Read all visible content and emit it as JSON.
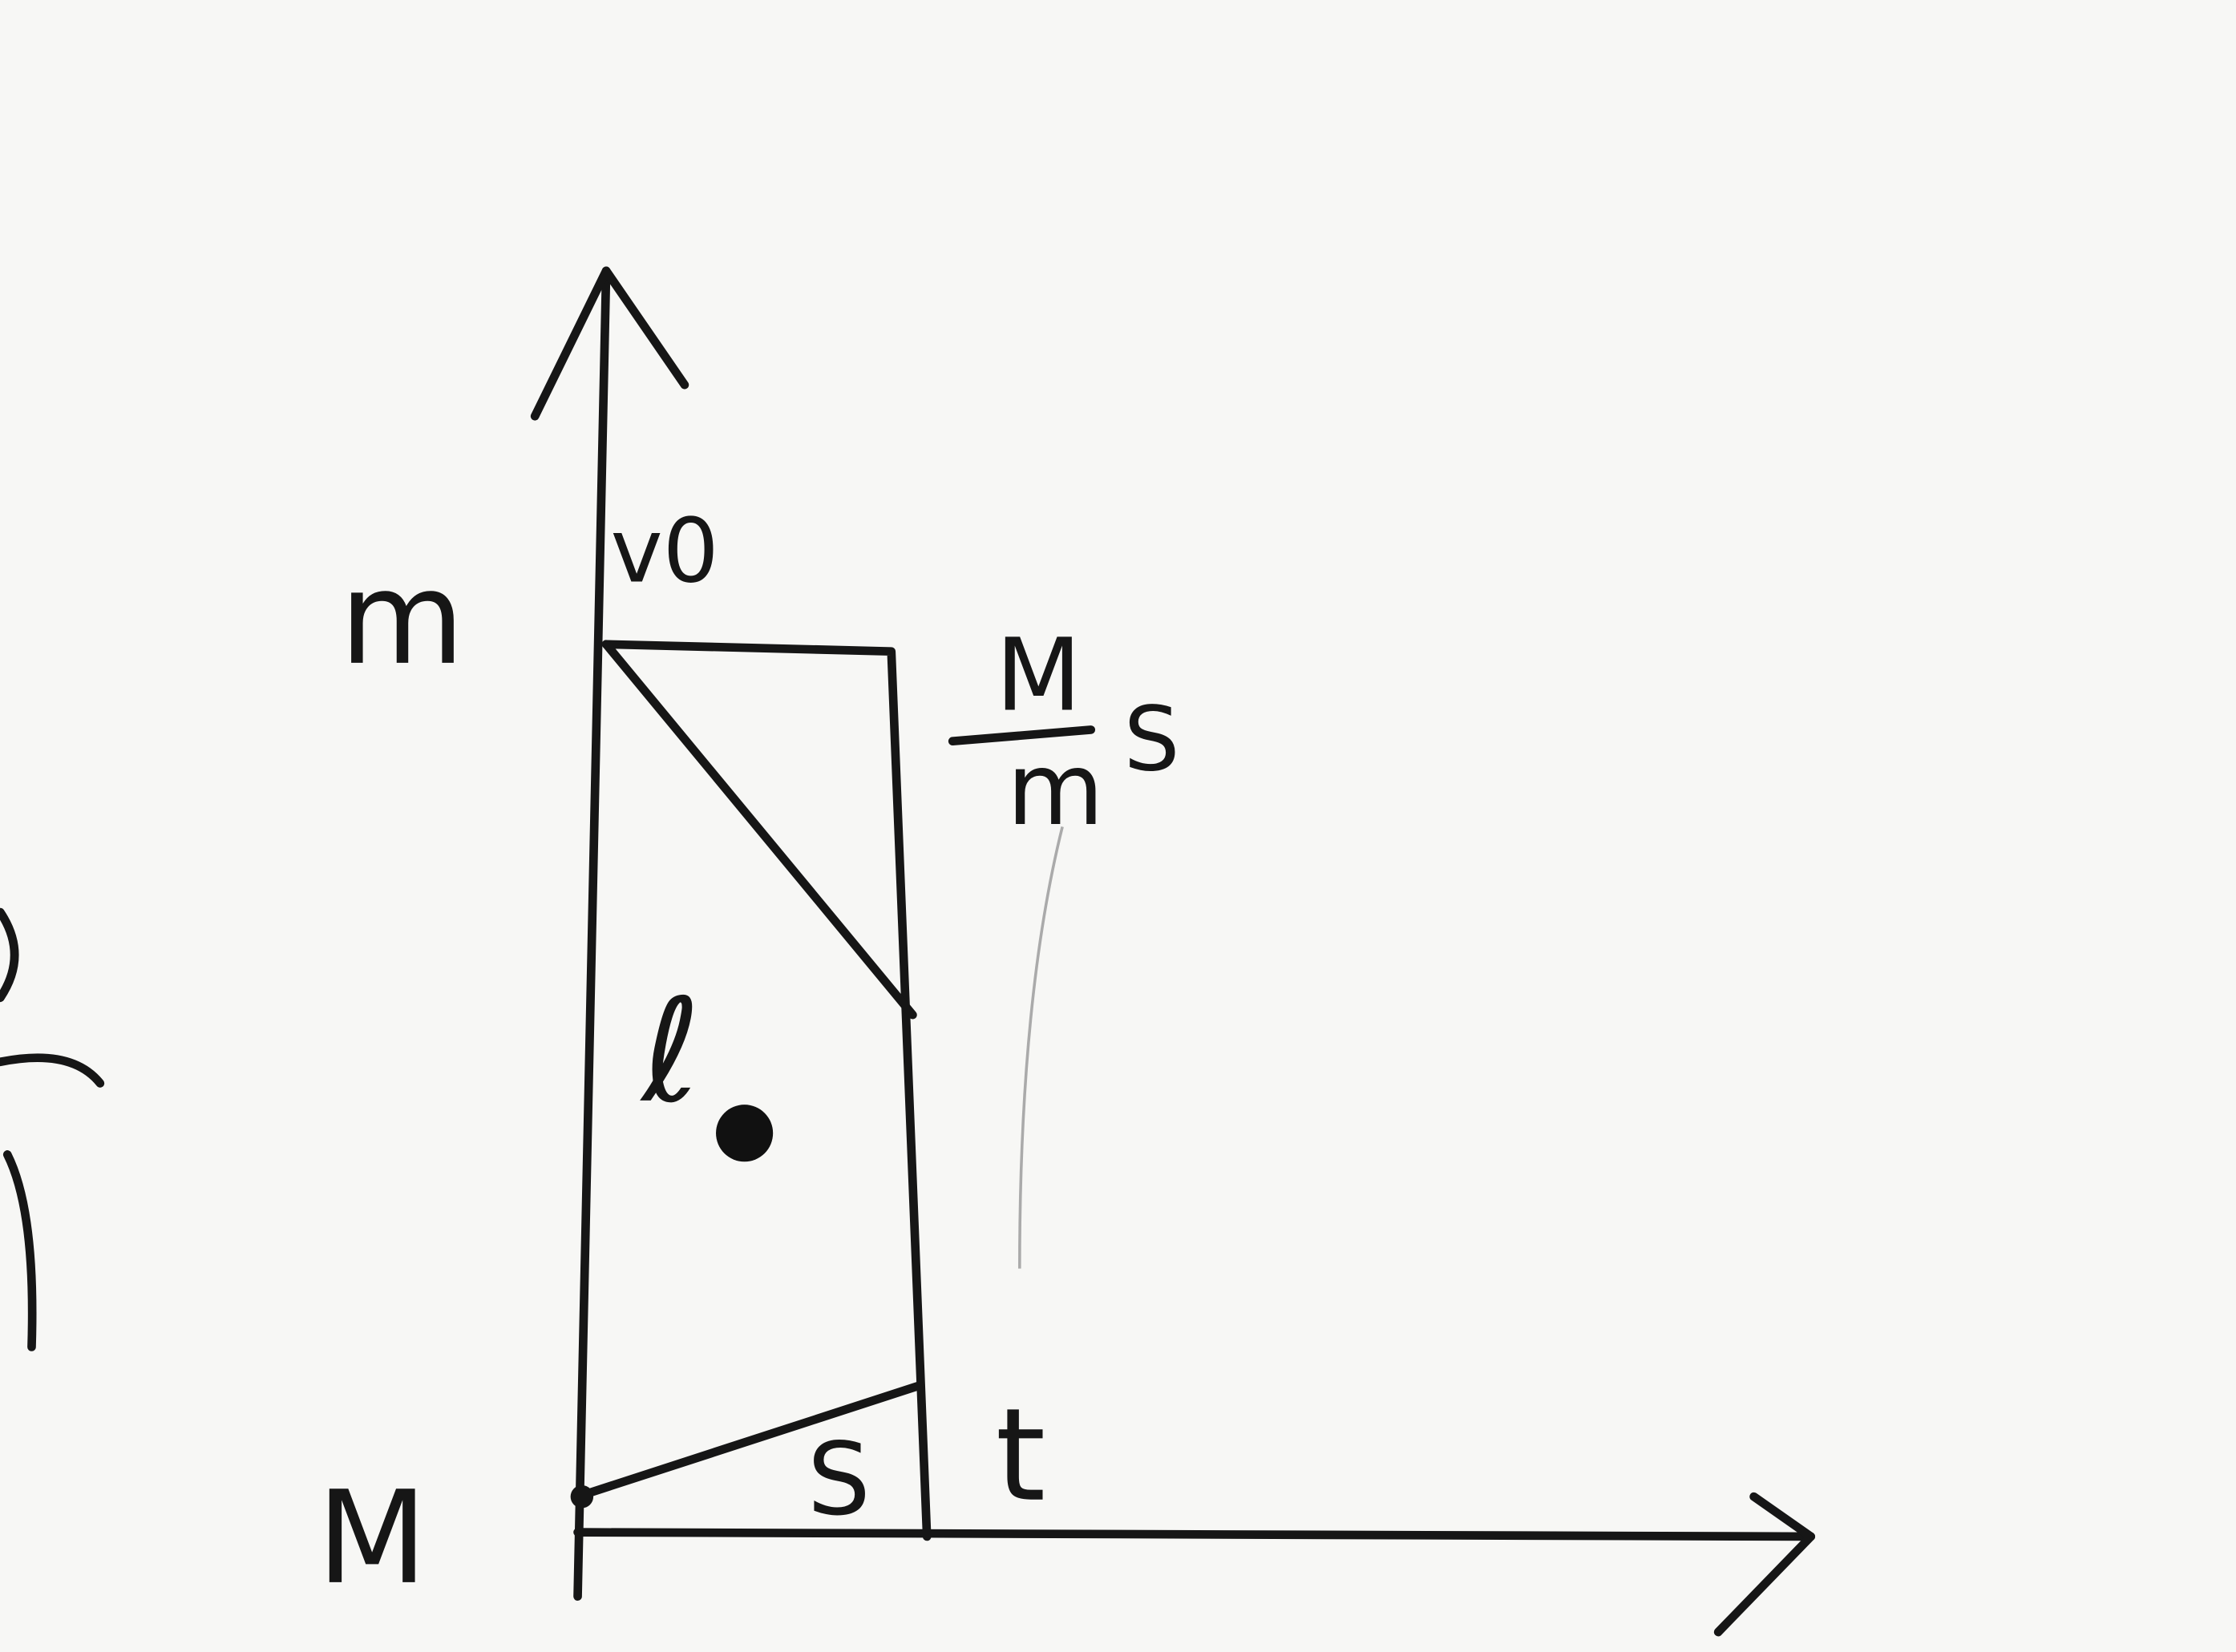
{
  "labels": {
    "v0": "v0",
    "m_left": "m",
    "M_left": "M",
    "fraction_numerator": "M",
    "fraction_denominator": "m",
    "fraction_suffix": "S",
    "ell": "ℓ",
    "area_S": "S",
    "t_axis": "t"
  }
}
